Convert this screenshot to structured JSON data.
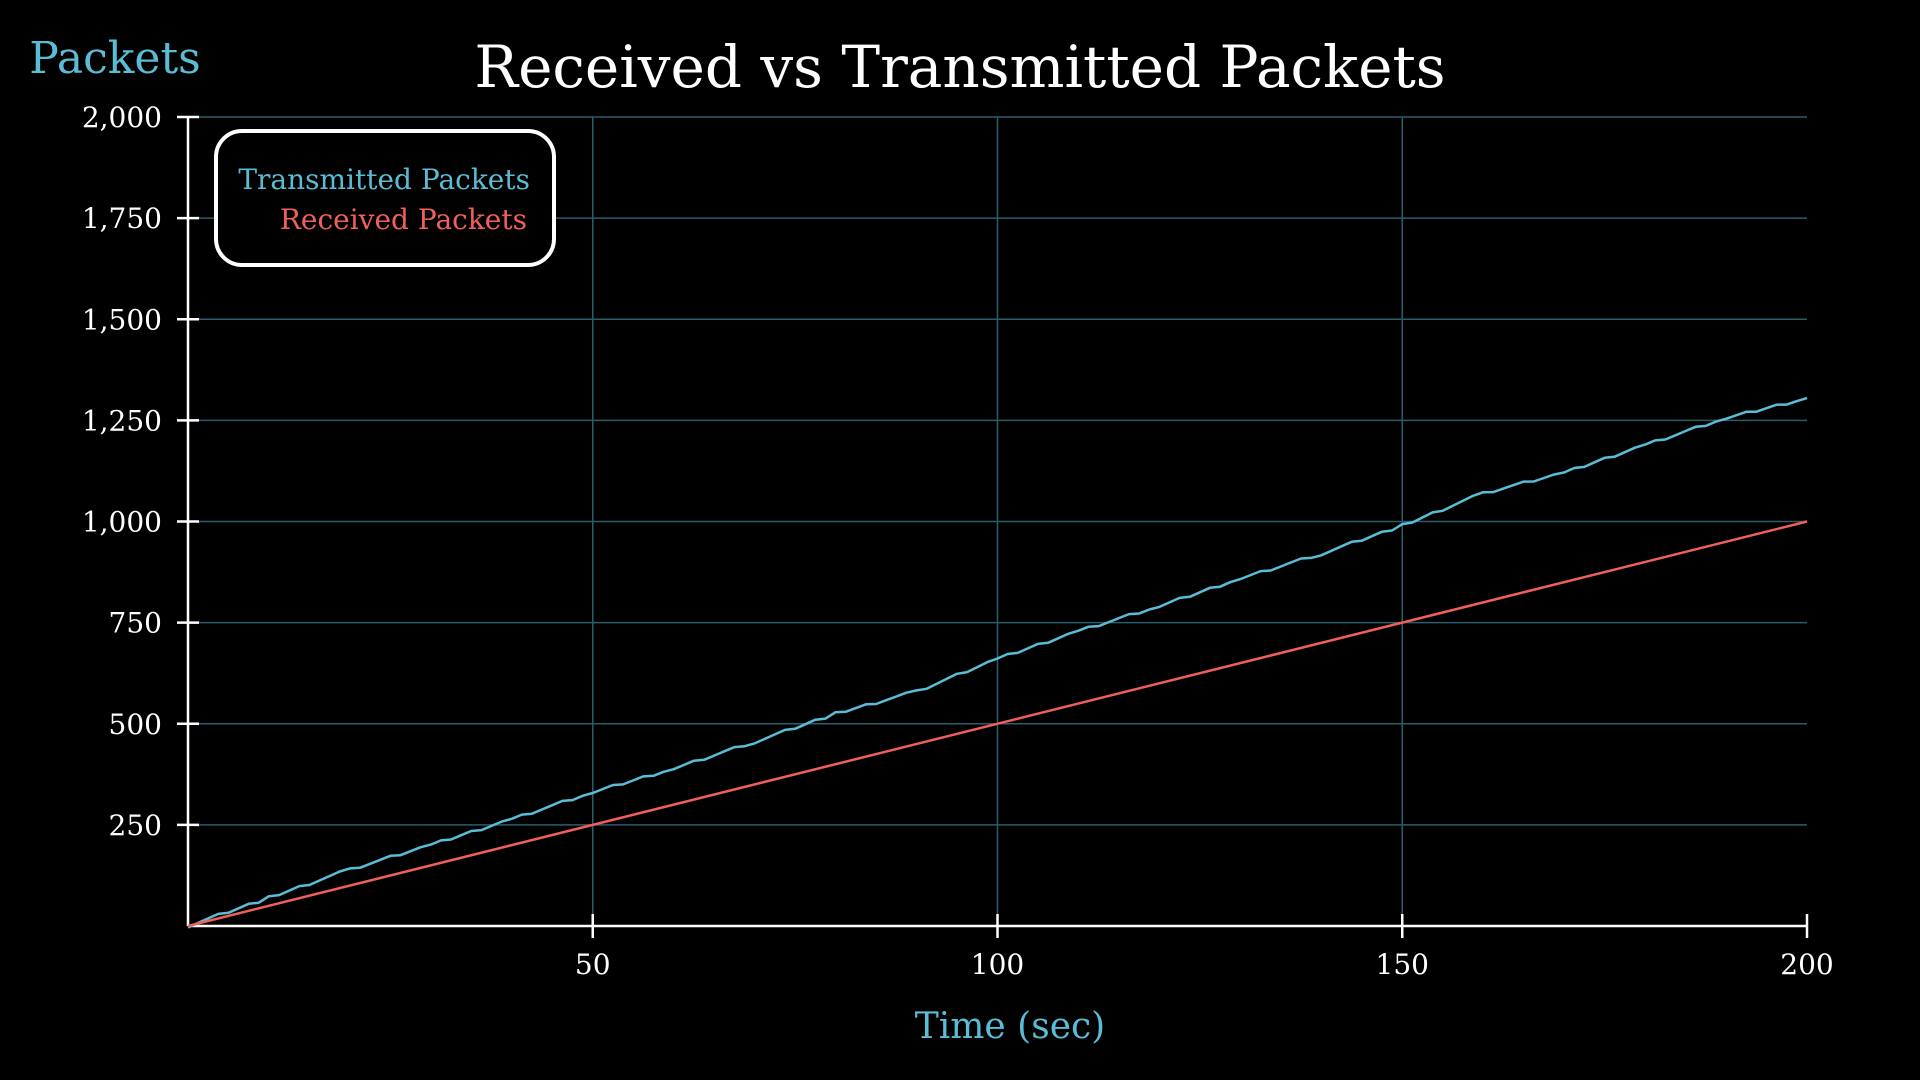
{
  "chart_data": {
    "type": "line",
    "title": "Received vs Transmitted Packets",
    "xlabel": "Time (sec)",
    "ylabel": "Packets",
    "xlim": [
      0,
      200
    ],
    "ylim": [
      0,
      2000
    ],
    "x_ticks": [
      50,
      100,
      150,
      200
    ],
    "x_tick_labels": [
      "50",
      "100",
      "150",
      "200"
    ],
    "y_ticks": [
      250,
      500,
      750,
      1000,
      1250,
      1500,
      1750,
      2000
    ],
    "y_tick_labels": [
      "250",
      "500",
      "750",
      "1,000",
      "1,250",
      "1,500",
      "1,750",
      "2,000"
    ],
    "grid": true,
    "legend_position": "top-left",
    "series": [
      {
        "name": "Transmitted Packets",
        "color": "#5bbcd6",
        "x": [
          0,
          10,
          20,
          30,
          40,
          50,
          60,
          70,
          80,
          90,
          100,
          110,
          120,
          130,
          140,
          150,
          160,
          170,
          180,
          190,
          200
        ],
        "y": [
          0,
          70,
          140,
          200,
          265,
          330,
          390,
          455,
          525,
          580,
          660,
          730,
          790,
          860,
          920,
          990,
          1070,
          1120,
          1190,
          1255,
          1305
        ]
      },
      {
        "name": "Received Packets",
        "color": "#f0605a",
        "x": [
          0,
          200
        ],
        "y": [
          0,
          1000
        ]
      }
    ]
  },
  "colors": {
    "background": "#000000",
    "grid": "#2d5c6b",
    "axis": "#ffffff",
    "label_accent": "#5bbcd6"
  }
}
